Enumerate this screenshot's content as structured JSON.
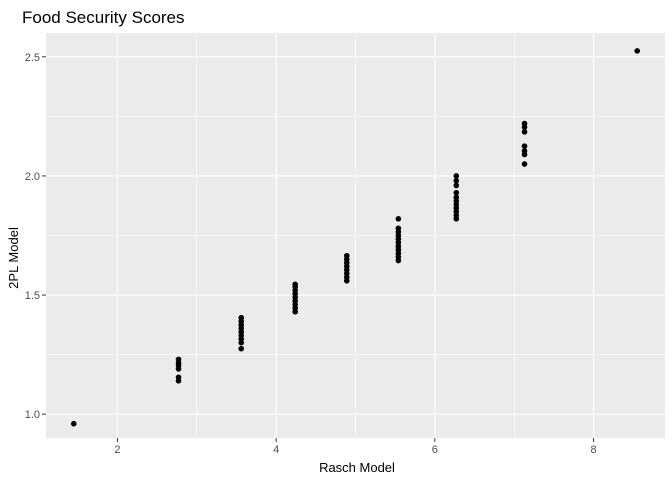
{
  "chart_data": {
    "type": "scatter",
    "title": "Food Security Scores",
    "xlabel": "Rasch Model",
    "ylabel": "2PL Model",
    "xlim": [
      1.1,
      8.9
    ],
    "ylim": [
      0.9,
      2.6
    ],
    "x_ticks": [
      2,
      4,
      6,
      8
    ],
    "y_ticks": [
      1.0,
      1.5,
      2.0,
      2.5
    ],
    "x_tick_labels": [
      "2",
      "4",
      "6",
      "8"
    ],
    "y_tick_labels": [
      "1.0",
      "1.5",
      "2.0",
      "2.5"
    ],
    "grid": true,
    "legend": "none",
    "colors": {
      "panel": "#ebebeb",
      "grid": "#ffffff",
      "point": "#000000"
    },
    "points": [
      {
        "x": 1.45,
        "y": 0.96
      },
      {
        "x": 2.77,
        "y": 1.14
      },
      {
        "x": 2.77,
        "y": 1.155
      },
      {
        "x": 2.77,
        "y": 1.19
      },
      {
        "x": 2.77,
        "y": 1.205
      },
      {
        "x": 2.77,
        "y": 1.215
      },
      {
        "x": 2.77,
        "y": 1.23
      },
      {
        "x": 3.56,
        "y": 1.275
      },
      {
        "x": 3.56,
        "y": 1.3
      },
      {
        "x": 3.56,
        "y": 1.315
      },
      {
        "x": 3.56,
        "y": 1.33
      },
      {
        "x": 3.56,
        "y": 1.345
      },
      {
        "x": 3.56,
        "y": 1.36
      },
      {
        "x": 3.56,
        "y": 1.375
      },
      {
        "x": 3.56,
        "y": 1.39
      },
      {
        "x": 3.56,
        "y": 1.405
      },
      {
        "x": 4.24,
        "y": 1.43
      },
      {
        "x": 4.24,
        "y": 1.445
      },
      {
        "x": 4.24,
        "y": 1.46
      },
      {
        "x": 4.24,
        "y": 1.475
      },
      {
        "x": 4.24,
        "y": 1.49
      },
      {
        "x": 4.24,
        "y": 1.505
      },
      {
        "x": 4.24,
        "y": 1.52
      },
      {
        "x": 4.24,
        "y": 1.535
      },
      {
        "x": 4.24,
        "y": 1.545
      },
      {
        "x": 4.89,
        "y": 1.56
      },
      {
        "x": 4.89,
        "y": 1.575
      },
      {
        "x": 4.89,
        "y": 1.59
      },
      {
        "x": 4.89,
        "y": 1.605
      },
      {
        "x": 4.89,
        "y": 1.62
      },
      {
        "x": 4.89,
        "y": 1.635
      },
      {
        "x": 4.89,
        "y": 1.65
      },
      {
        "x": 4.89,
        "y": 1.665
      },
      {
        "x": 5.54,
        "y": 1.645
      },
      {
        "x": 5.54,
        "y": 1.66
      },
      {
        "x": 5.54,
        "y": 1.675
      },
      {
        "x": 5.54,
        "y": 1.69
      },
      {
        "x": 5.54,
        "y": 1.705
      },
      {
        "x": 5.54,
        "y": 1.72
      },
      {
        "x": 5.54,
        "y": 1.735
      },
      {
        "x": 5.54,
        "y": 1.75
      },
      {
        "x": 5.54,
        "y": 1.765
      },
      {
        "x": 5.54,
        "y": 1.78
      },
      {
        "x": 5.54,
        "y": 1.82
      },
      {
        "x": 6.27,
        "y": 1.82
      },
      {
        "x": 6.27,
        "y": 1.835
      },
      {
        "x": 6.27,
        "y": 1.85
      },
      {
        "x": 6.27,
        "y": 1.865
      },
      {
        "x": 6.27,
        "y": 1.88
      },
      {
        "x": 6.27,
        "y": 1.895
      },
      {
        "x": 6.27,
        "y": 1.91
      },
      {
        "x": 6.27,
        "y": 1.93
      },
      {
        "x": 6.27,
        "y": 1.96
      },
      {
        "x": 6.27,
        "y": 1.98
      },
      {
        "x": 6.27,
        "y": 2.0
      },
      {
        "x": 7.13,
        "y": 2.05
      },
      {
        "x": 7.13,
        "y": 2.09
      },
      {
        "x": 7.13,
        "y": 2.105
      },
      {
        "x": 7.13,
        "y": 2.125
      },
      {
        "x": 7.13,
        "y": 2.185
      },
      {
        "x": 7.13,
        "y": 2.205
      },
      {
        "x": 7.13,
        "y": 2.22
      },
      {
        "x": 8.55,
        "y": 2.525
      }
    ]
  }
}
